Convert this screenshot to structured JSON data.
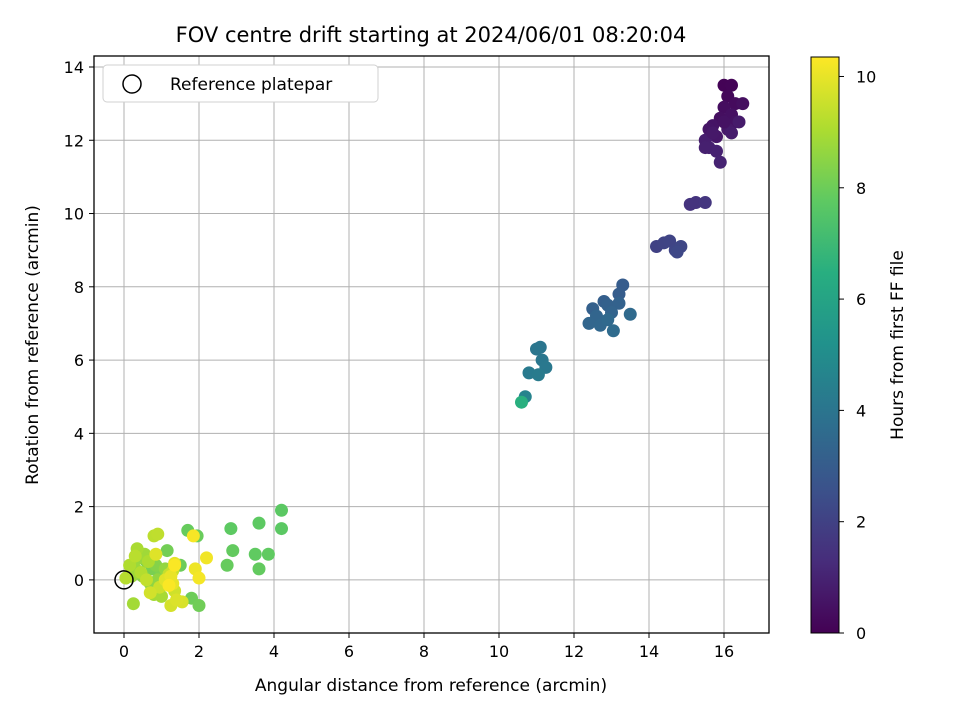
{
  "chart_data": {
    "type": "scatter",
    "title": "FOV centre drift starting at 2024/06/01 08:20:04",
    "xlabel": "Angular distance from reference (arcmin)",
    "ylabel": "Rotation from reference (arcmin)",
    "xlim": [
      -0.8,
      17.2
    ],
    "ylim": [
      -1.45,
      14.3
    ],
    "x_ticks": [
      0,
      2,
      4,
      6,
      8,
      10,
      12,
      14,
      16
    ],
    "y_ticks": [
      0,
      2,
      4,
      6,
      8,
      10,
      12,
      14
    ],
    "grid": true,
    "legend": {
      "position": "top-left",
      "entries": [
        "Reference platepar"
      ]
    },
    "reference_point": {
      "x": 0.0,
      "y": 0.0,
      "label": "Reference platepar"
    },
    "colorbar": {
      "label": "Hours from first FF file",
      "colormap": "viridis",
      "range": [
        0,
        10.35
      ],
      "ticks": [
        0,
        2,
        4,
        6,
        8,
        10
      ]
    },
    "points": [
      [
        16.0,
        13.5,
        0.05
      ],
      [
        16.2,
        13.5,
        0.1
      ],
      [
        16.1,
        13.2,
        0.2
      ],
      [
        16.3,
        13.0,
        0.3
      ],
      [
        16.0,
        12.9,
        0.35
      ],
      [
        15.9,
        12.6,
        0.4
      ],
      [
        16.2,
        12.7,
        0.45
      ],
      [
        16.3,
        12.5,
        0.5
      ],
      [
        15.7,
        12.4,
        0.55
      ],
      [
        15.6,
        12.3,
        0.6
      ],
      [
        15.8,
        12.1,
        0.65
      ],
      [
        16.1,
        12.3,
        0.7
      ],
      [
        16.4,
        12.5,
        0.75
      ],
      [
        16.2,
        12.2,
        0.8
      ],
      [
        15.5,
        12.0,
        0.85
      ],
      [
        15.6,
        11.8,
        0.9
      ],
      [
        15.8,
        11.7,
        0.95
      ],
      [
        15.9,
        11.4,
        1.0
      ],
      [
        16.5,
        13.0,
        0.4
      ],
      [
        16.0,
        12.5,
        0.5
      ],
      [
        15.5,
        11.8,
        0.9
      ],
      [
        15.7,
        12.2,
        0.7
      ],
      [
        15.1,
        10.25,
        1.5
      ],
      [
        15.25,
        10.3,
        1.55
      ],
      [
        15.5,
        10.3,
        1.6
      ],
      [
        14.2,
        9.1,
        2.0
      ],
      [
        14.4,
        9.2,
        2.05
      ],
      [
        14.55,
        9.25,
        2.1
      ],
      [
        14.7,
        9.0,
        2.15
      ],
      [
        14.85,
        9.1,
        2.2
      ],
      [
        14.75,
        8.95,
        2.25
      ],
      [
        13.3,
        8.05,
        3.0
      ],
      [
        13.2,
        7.8,
        3.05
      ],
      [
        12.8,
        7.6,
        3.1
      ],
      [
        12.5,
        7.4,
        3.15
      ],
      [
        12.9,
        7.5,
        3.2
      ],
      [
        13.2,
        7.55,
        3.25
      ],
      [
        13.0,
        7.3,
        3.3
      ],
      [
        12.6,
        7.2,
        3.35
      ],
      [
        12.4,
        7.0,
        3.4
      ],
      [
        12.7,
        6.95,
        3.45
      ],
      [
        12.9,
        7.1,
        3.5
      ],
      [
        13.5,
        7.25,
        3.55
      ],
      [
        13.05,
        6.8,
        3.6
      ],
      [
        11.1,
        6.35,
        4.0
      ],
      [
        11.0,
        6.3,
        4.05
      ],
      [
        11.15,
        6.0,
        4.1
      ],
      [
        11.25,
        5.8,
        4.15
      ],
      [
        10.8,
        5.65,
        4.2
      ],
      [
        11.05,
        5.6,
        4.25
      ],
      [
        10.7,
        5.0,
        4.6
      ],
      [
        10.6,
        4.85,
        6.5
      ],
      [
        4.2,
        1.9,
        7.7
      ],
      [
        4.2,
        1.4,
        7.7
      ],
      [
        3.6,
        1.55,
        7.75
      ],
      [
        2.85,
        1.4,
        7.75
      ],
      [
        3.5,
        0.7,
        7.8
      ],
      [
        3.85,
        0.7,
        7.8
      ],
      [
        3.6,
        0.3,
        7.85
      ],
      [
        2.9,
        0.8,
        7.85
      ],
      [
        2.75,
        0.4,
        7.9
      ],
      [
        1.7,
        1.35,
        7.9
      ],
      [
        1.95,
        1.2,
        7.95
      ],
      [
        1.5,
        0.4,
        8.0
      ],
      [
        1.8,
        -0.5,
        8.0
      ],
      [
        2.0,
        -0.7,
        8.05
      ],
      [
        1.15,
        0.8,
        8.1
      ],
      [
        0.75,
        0.3,
        8.2
      ],
      [
        1.0,
        0.2,
        8.3
      ],
      [
        0.6,
        0.5,
        8.35
      ],
      [
        0.85,
        0.4,
        8.4
      ],
      [
        0.5,
        0.1,
        8.5
      ],
      [
        0.7,
        -0.1,
        8.55
      ],
      [
        0.9,
        0.0,
        8.6
      ],
      [
        1.1,
        0.3,
        8.65
      ],
      [
        0.4,
        0.6,
        8.7
      ],
      [
        0.3,
        0.3,
        8.75
      ],
      [
        0.2,
        0.1,
        8.8
      ],
      [
        0.55,
        0.7,
        8.85
      ],
      [
        0.25,
        -0.65,
        8.9
      ],
      [
        0.8,
        -0.4,
        8.9
      ],
      [
        1.0,
        -0.45,
        8.95
      ],
      [
        0.35,
        0.85,
        9.0
      ],
      [
        0.65,
        0.5,
        9.05
      ],
      [
        0.15,
        0.4,
        9.1
      ],
      [
        0.45,
        0.2,
        9.15
      ],
      [
        0.05,
        0.05,
        9.2
      ],
      [
        0.3,
        0.65,
        9.25
      ],
      [
        0.8,
        1.2,
        9.3
      ],
      [
        0.9,
        1.25,
        9.35
      ],
      [
        0.6,
        0.0,
        9.4
      ],
      [
        1.2,
        0.15,
        9.45
      ],
      [
        1.3,
        0.25,
        9.5
      ],
      [
        0.95,
        -0.2,
        9.55
      ],
      [
        1.35,
        -0.3,
        9.6
      ],
      [
        0.7,
        -0.35,
        9.65
      ],
      [
        1.25,
        -0.7,
        9.7
      ],
      [
        1.55,
        -0.6,
        9.75
      ],
      [
        1.4,
        -0.55,
        9.8
      ],
      [
        0.85,
        0.7,
        9.85
      ],
      [
        1.1,
        0.0,
        9.9
      ],
      [
        1.35,
        0.45,
        9.95
      ],
      [
        1.3,
        -0.1,
        10.0
      ],
      [
        1.25,
        0.1,
        10.05
      ],
      [
        1.9,
        0.3,
        10.1
      ],
      [
        2.2,
        0.6,
        10.15
      ],
      [
        2.0,
        0.05,
        10.2
      ],
      [
        1.85,
        1.2,
        10.25
      ],
      [
        1.35,
        0.4,
        10.3
      ],
      [
        1.2,
        -0.15,
        10.3
      ]
    ]
  }
}
